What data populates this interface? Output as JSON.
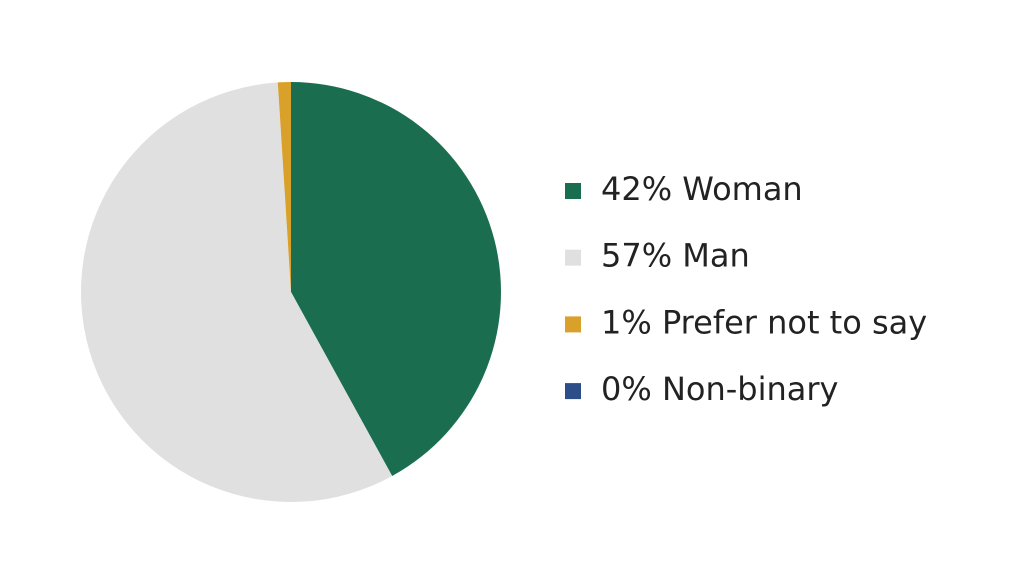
{
  "chart_data": {
    "type": "pie",
    "categories": [
      "42% Woman",
      "57% Man",
      "1% Prefer not to say",
      "0% Non-binary"
    ],
    "values": [
      42,
      57,
      1,
      0
    ],
    "colors": [
      "#1a6e4f",
      "#e0e0e0",
      "#d9a02a",
      "#2e4e8a"
    ],
    "legend": "right"
  }
}
